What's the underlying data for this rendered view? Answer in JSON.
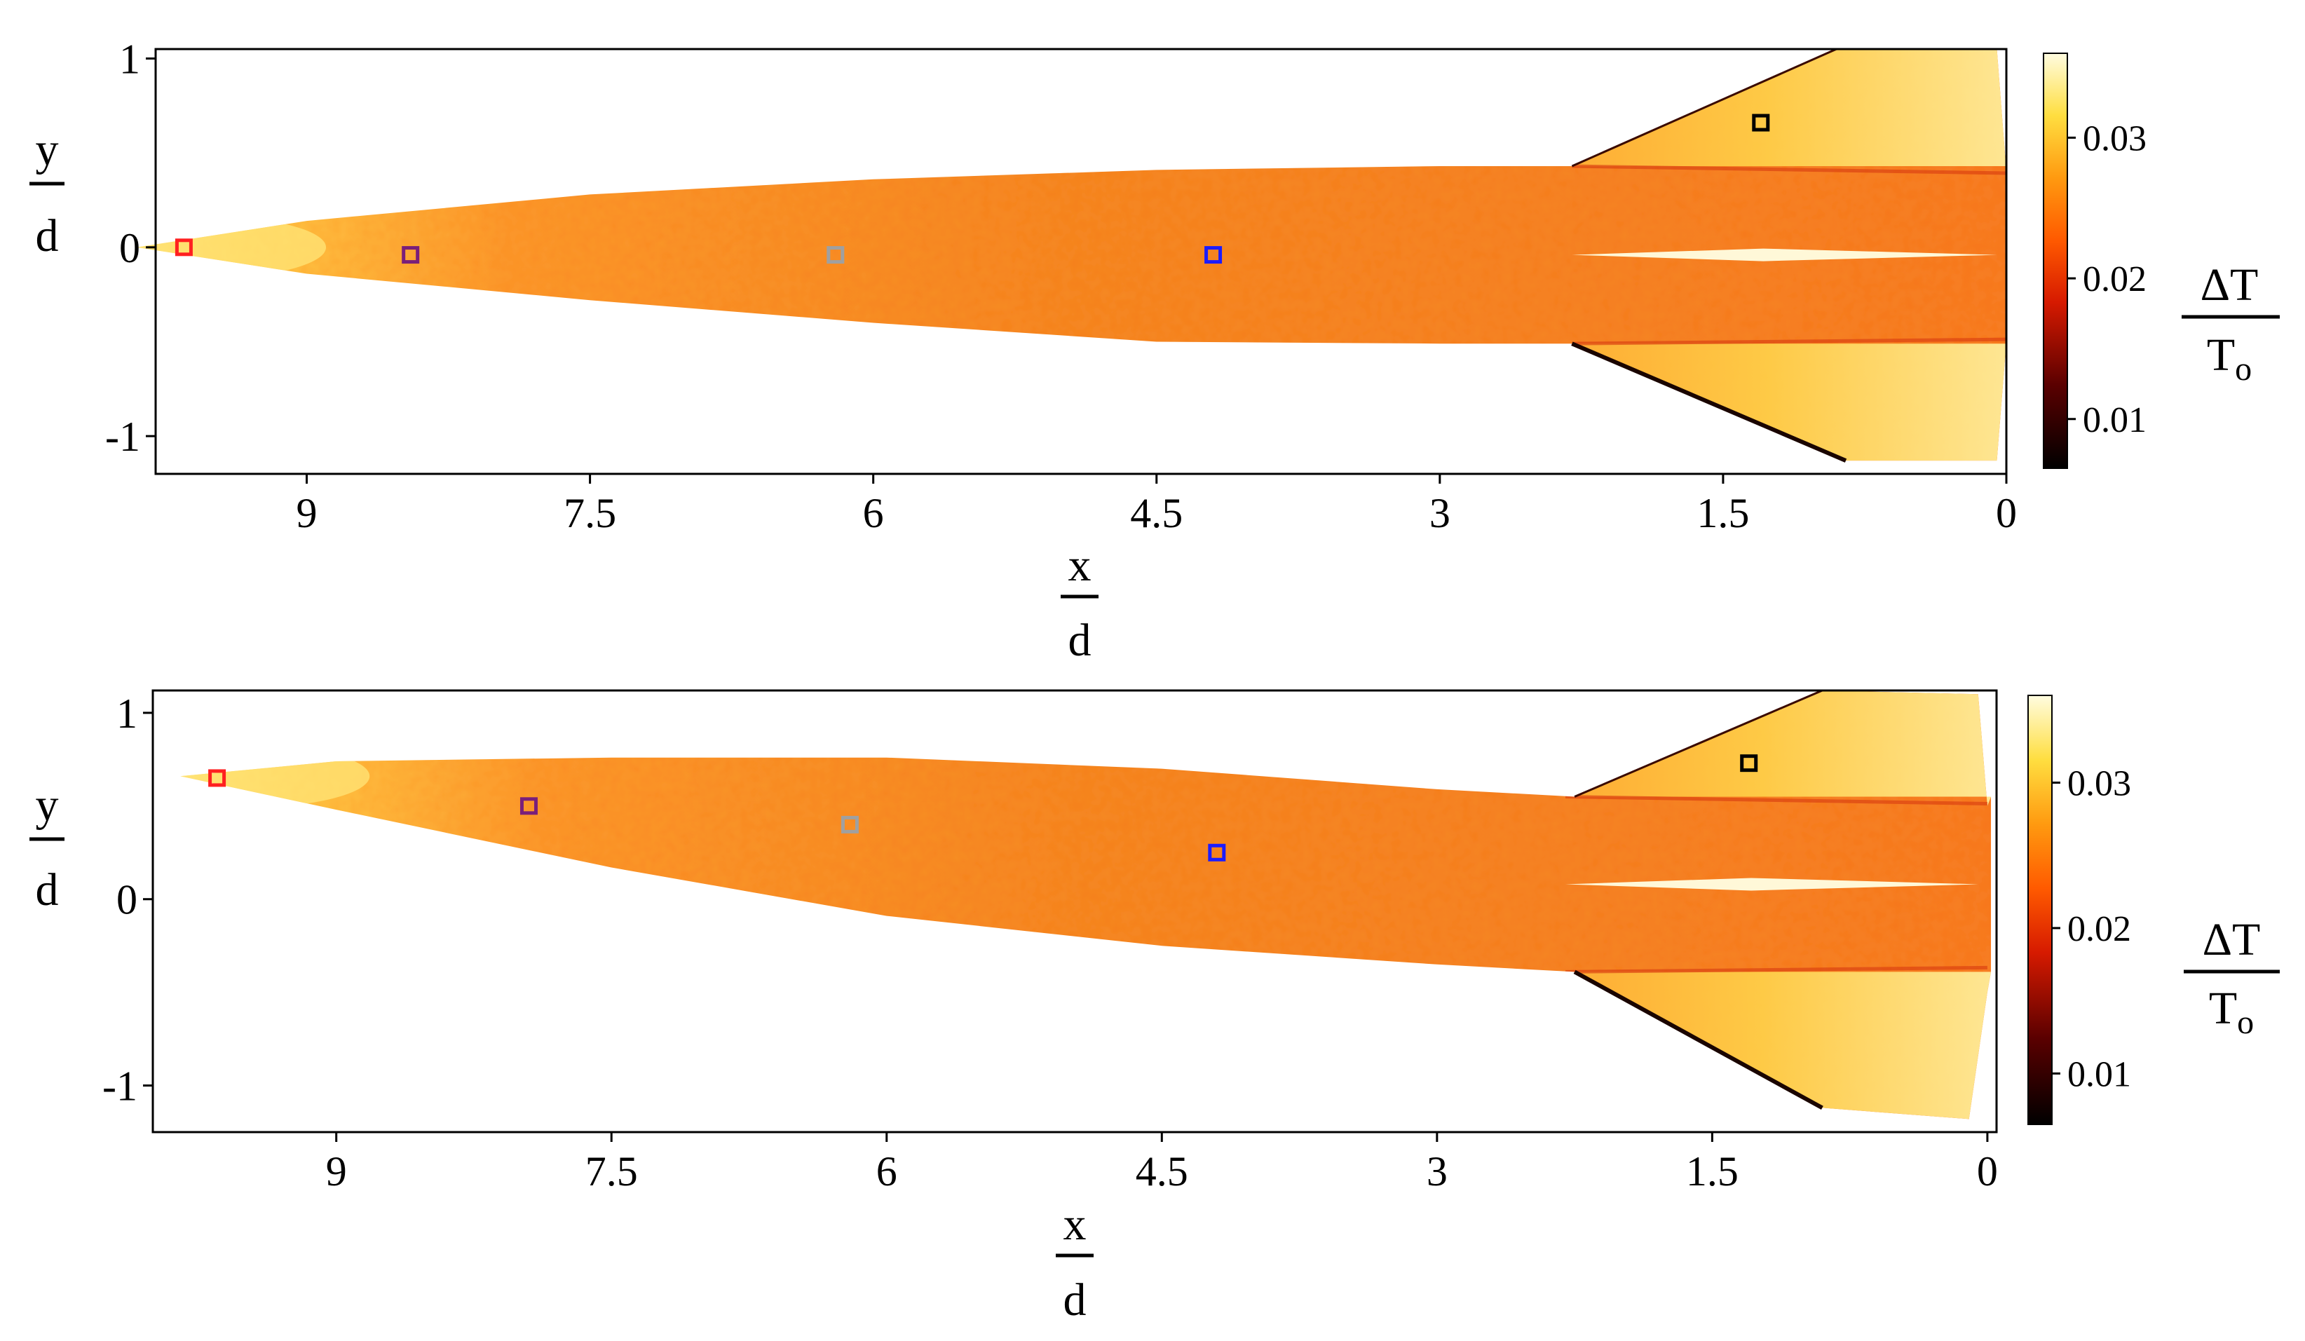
{
  "chart_data": [
    {
      "type": "heatmap",
      "title": "",
      "xlabel": {
        "numerator": "x",
        "denominator": "d"
      },
      "ylabel": {
        "numerator": "y",
        "denominator": "d"
      },
      "xlim": [
        9.8,
        0
      ],
      "ylim": [
        -1.2,
        1.05
      ],
      "x_ticks": [
        9,
        7.5,
        6,
        4.5,
        3,
        1.5,
        0
      ],
      "x_tick_labels": [
        "9",
        "7.5",
        "6",
        "4.5",
        "3",
        "1.5",
        "0"
      ],
      "y_ticks": [
        1,
        0,
        -1
      ],
      "y_tick_labels": [
        "1",
        "0",
        "-1"
      ],
      "colorbar": {
        "label_numerator": "ΔT",
        "label_denominator": "T",
        "label_subscript": "o",
        "range": [
          0.0065,
          0.036
        ],
        "ticks": [
          0.01,
          0.02,
          0.03
        ],
        "tick_labels": [
          "0.01",
          "0.02",
          "0.03"
        ],
        "colormap": "afmhot"
      },
      "body_outline": {
        "upper_edge": [
          [
            9.9,
            0.0
          ],
          [
            9.0,
            0.14
          ],
          [
            7.5,
            0.28
          ],
          [
            6.0,
            0.36
          ],
          [
            4.5,
            0.41
          ],
          [
            3.0,
            0.43
          ],
          [
            2.3,
            0.43
          ]
        ],
        "lower_edge": [
          [
            9.9,
            0.0
          ],
          [
            9.0,
            -0.14
          ],
          [
            7.5,
            -0.28
          ],
          [
            6.0,
            -0.4
          ],
          [
            4.5,
            -0.5
          ],
          [
            3.0,
            -0.51
          ],
          [
            2.3,
            -0.51
          ]
        ],
        "upper_fin": [
          [
            2.3,
            0.43
          ],
          [
            0.9,
            1.05
          ],
          [
            0.05,
            1.05
          ],
          [
            0.0,
            0.4
          ]
        ],
        "lower_fin": [
          [
            2.3,
            -0.51
          ],
          [
            0.85,
            -1.13
          ],
          [
            0.05,
            -1.13
          ],
          [
            0.0,
            -0.5
          ]
        ],
        "rear_x": 0.0
      },
      "markers": [
        {
          "x": 9.65,
          "y": 0.0,
          "color": "#ff2020"
        },
        {
          "x": 8.45,
          "y": -0.04,
          "color": "#7a1f7a"
        },
        {
          "x": 6.2,
          "y": -0.04,
          "color": "#a0a0a0"
        },
        {
          "x": 4.2,
          "y": -0.04,
          "color": "#1c1cff"
        },
        {
          "x": 1.3,
          "y": 0.66,
          "color": "#000000"
        }
      ]
    },
    {
      "type": "heatmap",
      "title": "",
      "xlabel": {
        "numerator": "x",
        "denominator": "d"
      },
      "ylabel": {
        "numerator": "y",
        "denominator": "d"
      },
      "xlim": [
        10.0,
        -0.05
      ],
      "ylim": [
        -1.25,
        1.12
      ],
      "x_ticks": [
        9,
        7.5,
        6,
        4.5,
        3,
        1.5,
        0
      ],
      "x_tick_labels": [
        "9",
        "7.5",
        "6",
        "4.5",
        "3",
        "1.5",
        "0"
      ],
      "y_ticks": [
        1,
        0,
        -1
      ],
      "y_tick_labels": [
        "1",
        "0",
        "-1"
      ],
      "colorbar": {
        "label_numerator": "ΔT",
        "label_denominator": "T",
        "label_subscript": "o",
        "range": [
          0.0065,
          0.036
        ],
        "ticks": [
          0.01,
          0.02,
          0.03
        ],
        "tick_labels": [
          "0.01",
          "0.02",
          "0.03"
        ],
        "colormap": "afmhot"
      },
      "body_outline": {
        "upper_edge": [
          [
            9.85,
            0.66
          ],
          [
            9.0,
            0.74
          ],
          [
            7.5,
            0.76
          ],
          [
            6.0,
            0.76
          ],
          [
            4.5,
            0.7
          ],
          [
            3.0,
            0.59
          ],
          [
            2.25,
            0.55
          ]
        ],
        "lower_edge": [
          [
            9.85,
            0.66
          ],
          [
            9.0,
            0.48
          ],
          [
            7.5,
            0.17
          ],
          [
            6.0,
            -0.09
          ],
          [
            4.5,
            -0.25
          ],
          [
            3.0,
            -0.35
          ],
          [
            2.25,
            -0.39
          ]
        ],
        "upper_fin": [
          [
            2.25,
            0.55
          ],
          [
            0.9,
            1.12
          ],
          [
            0.05,
            1.1
          ],
          [
            0.0,
            0.5
          ]
        ],
        "lower_fin": [
          [
            2.25,
            -0.39
          ],
          [
            0.9,
            -1.12
          ],
          [
            0.1,
            -1.18
          ],
          [
            0.0,
            -0.5
          ]
        ],
        "rear_x": -0.02
      },
      "markers": [
        {
          "x": 9.65,
          "y": 0.65,
          "color": "#ff2020"
        },
        {
          "x": 7.95,
          "y": 0.5,
          "color": "#7a1f7a"
        },
        {
          "x": 6.2,
          "y": 0.4,
          "color": "#a0a0a0"
        },
        {
          "x": 4.2,
          "y": 0.25,
          "color": "#1c1cff"
        },
        {
          "x": 1.3,
          "y": 0.73,
          "color": "#000000"
        }
      ]
    }
  ]
}
